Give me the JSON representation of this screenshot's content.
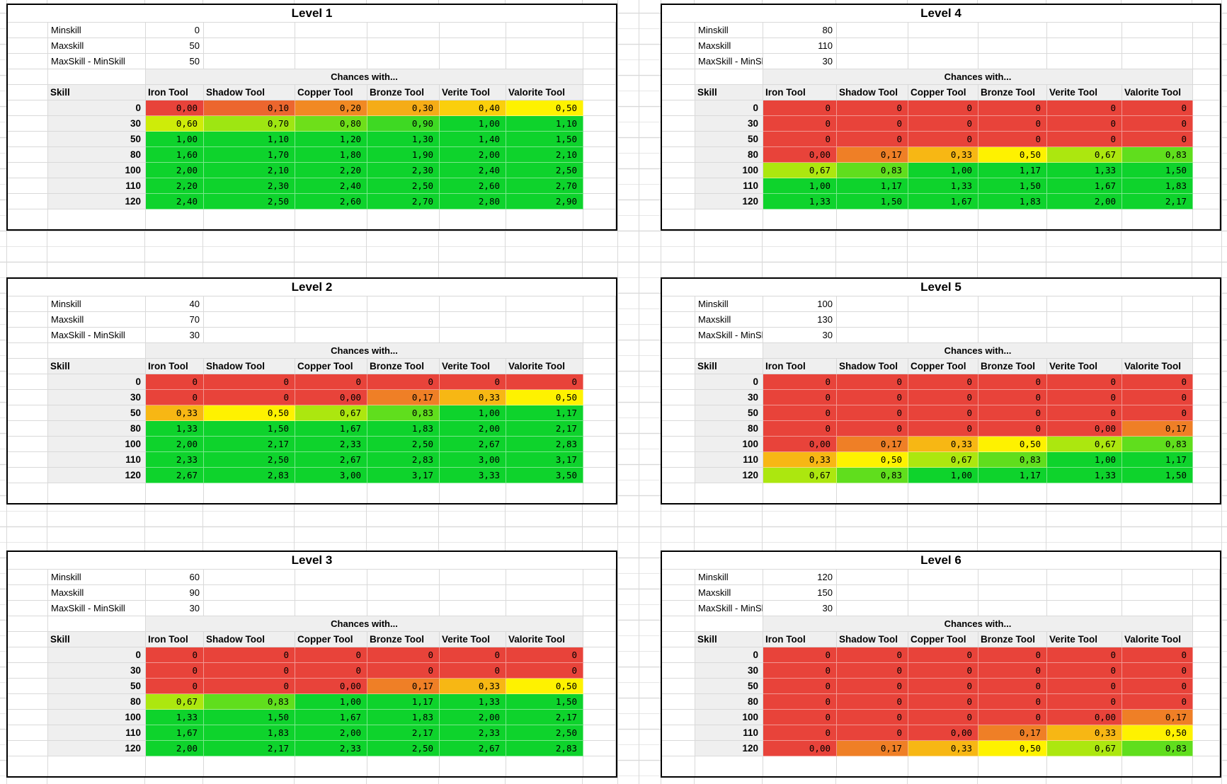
{
  "palette": {
    "heat_red": "#E8433A",
    "heat_yellow": "#FEF200",
    "heat_green": "#0ED32C",
    "header_fill": "#EFEFEF",
    "gridline": "#D9D9D9",
    "table_border": "#000000"
  },
  "labels": {
    "minskill": "Minskill",
    "maxskill": "Maxskill",
    "diff": "MaxSkill - MinSkill",
    "chances": "Chances with...",
    "skill": "Skill"
  },
  "tools": [
    "Iron Tool",
    "Shadow Tool",
    "Copper Tool",
    "Bronze Tool",
    "Verite Tool",
    "Valorite Tool"
  ],
  "tables": [
    {
      "title": "Level 1",
      "minskill": "0",
      "maxskill": "50",
      "diff": "50",
      "rows": [
        {
          "skill": "0",
          "values": [
            "0,00",
            "0,10",
            "0,20",
            "0,30",
            "0,40",
            "0,50"
          ]
        },
        {
          "skill": "30",
          "values": [
            "0,60",
            "0,70",
            "0,80",
            "0,90",
            "1,00",
            "1,10"
          ]
        },
        {
          "skill": "50",
          "values": [
            "1,00",
            "1,10",
            "1,20",
            "1,30",
            "1,40",
            "1,50"
          ]
        },
        {
          "skill": "80",
          "values": [
            "1,60",
            "1,70",
            "1,80",
            "1,90",
            "2,00",
            "2,10"
          ]
        },
        {
          "skill": "100",
          "values": [
            "2,00",
            "2,10",
            "2,20",
            "2,30",
            "2,40",
            "2,50"
          ]
        },
        {
          "skill": "110",
          "values": [
            "2,20",
            "2,30",
            "2,40",
            "2,50",
            "2,60",
            "2,70"
          ]
        },
        {
          "skill": "120",
          "values": [
            "2,40",
            "2,50",
            "2,60",
            "2,70",
            "2,80",
            "2,90"
          ]
        }
      ]
    },
    {
      "title": "Level 2",
      "minskill": "40",
      "maxskill": "70",
      "diff": "30",
      "rows": [
        {
          "skill": "0",
          "values": [
            "0",
            "0",
            "0",
            "0",
            "0",
            "0"
          ]
        },
        {
          "skill": "30",
          "values": [
            "0",
            "0",
            "0,00",
            "0,17",
            "0,33",
            "0,50"
          ]
        },
        {
          "skill": "50",
          "values": [
            "0,33",
            "0,50",
            "0,67",
            "0,83",
            "1,00",
            "1,17"
          ]
        },
        {
          "skill": "80",
          "values": [
            "1,33",
            "1,50",
            "1,67",
            "1,83",
            "2,00",
            "2,17"
          ]
        },
        {
          "skill": "100",
          "values": [
            "2,00",
            "2,17",
            "2,33",
            "2,50",
            "2,67",
            "2,83"
          ]
        },
        {
          "skill": "110",
          "values": [
            "2,33",
            "2,50",
            "2,67",
            "2,83",
            "3,00",
            "3,17"
          ]
        },
        {
          "skill": "120",
          "values": [
            "2,67",
            "2,83",
            "3,00",
            "3,17",
            "3,33",
            "3,50"
          ]
        }
      ]
    },
    {
      "title": "Level 3",
      "minskill": "60",
      "maxskill": "90",
      "diff": "30",
      "rows": [
        {
          "skill": "0",
          "values": [
            "0",
            "0",
            "0",
            "0",
            "0",
            "0"
          ]
        },
        {
          "skill": "30",
          "values": [
            "0",
            "0",
            "0",
            "0",
            "0",
            "0"
          ]
        },
        {
          "skill": "50",
          "values": [
            "0",
            "0",
            "0,00",
            "0,17",
            "0,33",
            "0,50"
          ]
        },
        {
          "skill": "80",
          "values": [
            "0,67",
            "0,83",
            "1,00",
            "1,17",
            "1,33",
            "1,50"
          ]
        },
        {
          "skill": "100",
          "values": [
            "1,33",
            "1,50",
            "1,67",
            "1,83",
            "2,00",
            "2,17"
          ]
        },
        {
          "skill": "110",
          "values": [
            "1,67",
            "1,83",
            "2,00",
            "2,17",
            "2,33",
            "2,50"
          ]
        },
        {
          "skill": "120",
          "values": [
            "2,00",
            "2,17",
            "2,33",
            "2,50",
            "2,67",
            "2,83"
          ]
        }
      ]
    },
    {
      "title": "Level 4",
      "minskill": "80",
      "maxskill": "110",
      "diff": "30",
      "rows": [
        {
          "skill": "0",
          "values": [
            "0",
            "0",
            "0",
            "0",
            "0",
            "0"
          ]
        },
        {
          "skill": "30",
          "values": [
            "0",
            "0",
            "0",
            "0",
            "0",
            "0"
          ]
        },
        {
          "skill": "50",
          "values": [
            "0",
            "0",
            "0",
            "0",
            "0",
            "0"
          ]
        },
        {
          "skill": "80",
          "values": [
            "0,00",
            "0,17",
            "0,33",
            "0,50",
            "0,67",
            "0,83"
          ]
        },
        {
          "skill": "100",
          "values": [
            "0,67",
            "0,83",
            "1,00",
            "1,17",
            "1,33",
            "1,50"
          ]
        },
        {
          "skill": "110",
          "values": [
            "1,00",
            "1,17",
            "1,33",
            "1,50",
            "1,67",
            "1,83"
          ]
        },
        {
          "skill": "120",
          "values": [
            "1,33",
            "1,50",
            "1,67",
            "1,83",
            "2,00",
            "2,17"
          ]
        }
      ]
    },
    {
      "title": "Level 5",
      "minskill": "100",
      "maxskill": "130",
      "diff": "30",
      "rows": [
        {
          "skill": "0",
          "values": [
            "0",
            "0",
            "0",
            "0",
            "0",
            "0"
          ]
        },
        {
          "skill": "30",
          "values": [
            "0",
            "0",
            "0",
            "0",
            "0",
            "0"
          ]
        },
        {
          "skill": "50",
          "values": [
            "0",
            "0",
            "0",
            "0",
            "0",
            "0"
          ]
        },
        {
          "skill": "80",
          "values": [
            "0",
            "0",
            "0",
            "0",
            "0,00",
            "0,17"
          ]
        },
        {
          "skill": "100",
          "values": [
            "0,00",
            "0,17",
            "0,33",
            "0,50",
            "0,67",
            "0,83"
          ]
        },
        {
          "skill": "110",
          "values": [
            "0,33",
            "0,50",
            "0,67",
            "0,83",
            "1,00",
            "1,17"
          ]
        },
        {
          "skill": "120",
          "values": [
            "0,67",
            "0,83",
            "1,00",
            "1,17",
            "1,33",
            "1,50"
          ]
        }
      ]
    },
    {
      "title": "Level 6",
      "minskill": "120",
      "maxskill": "150",
      "diff": "30",
      "rows": [
        {
          "skill": "0",
          "values": [
            "0",
            "0",
            "0",
            "0",
            "0",
            "0"
          ]
        },
        {
          "skill": "30",
          "values": [
            "0",
            "0",
            "0",
            "0",
            "0",
            "0"
          ]
        },
        {
          "skill": "50",
          "values": [
            "0",
            "0",
            "0",
            "0",
            "0",
            "0"
          ]
        },
        {
          "skill": "80",
          "values": [
            "0",
            "0",
            "0",
            "0",
            "0",
            "0"
          ]
        },
        {
          "skill": "100",
          "values": [
            "0",
            "0",
            "0",
            "0",
            "0,00",
            "0,17"
          ]
        },
        {
          "skill": "110",
          "values": [
            "0",
            "0",
            "0,00",
            "0,17",
            "0,33",
            "0,50"
          ]
        },
        {
          "skill": "120",
          "values": [
            "0,00",
            "0,17",
            "0,33",
            "0,50",
            "0,67",
            "0,83"
          ]
        }
      ]
    }
  ]
}
